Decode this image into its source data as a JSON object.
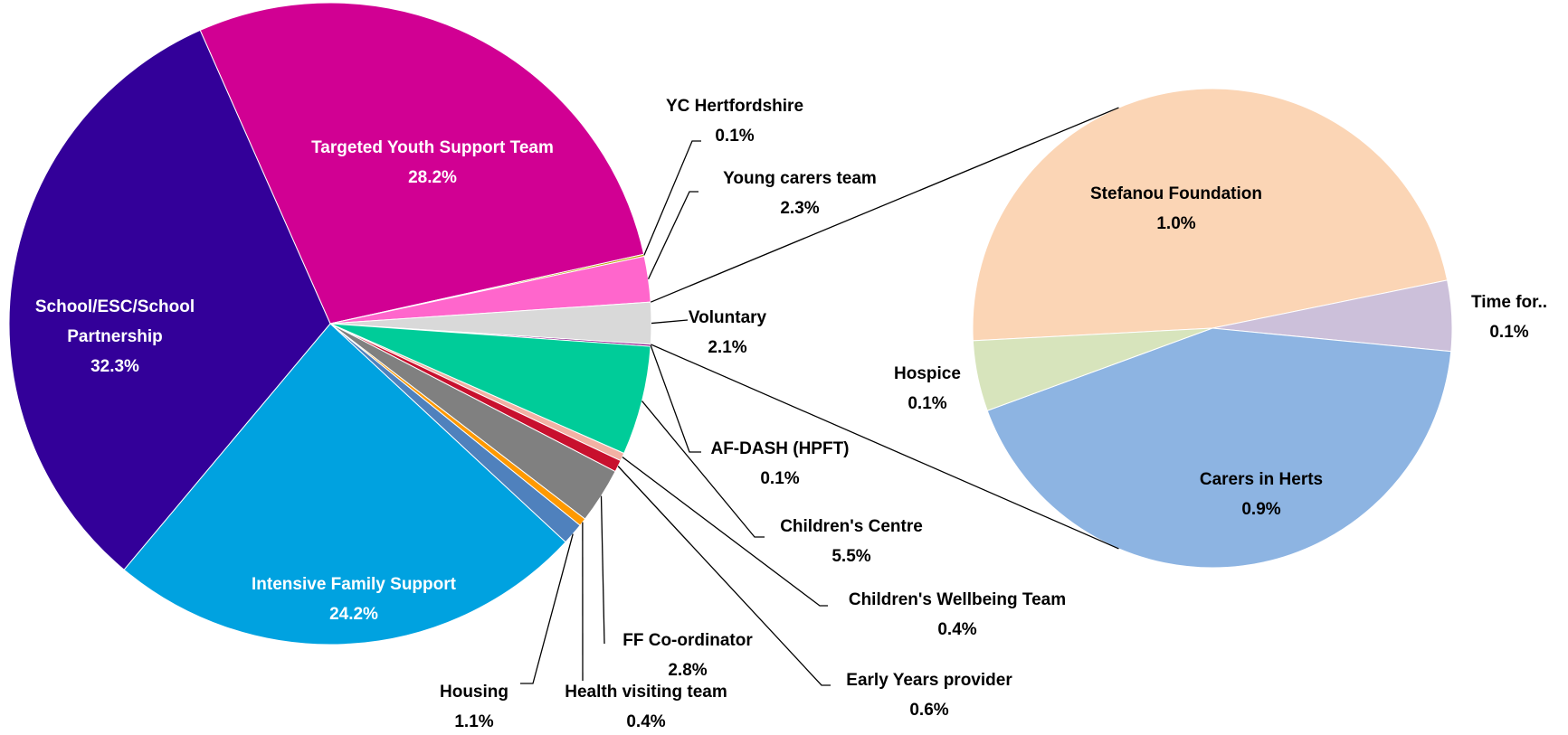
{
  "chart_data": [
    {
      "type": "pie",
      "categories": [
        "Targeted Youth Support Team",
        "YC Hertfordshire",
        "Young carers team",
        "Voluntary",
        "AF-DASH (HPFT)",
        "Children's Centre",
        "Children's Wellbeing Team",
        "Early Years provider",
        "FF Co-ordinator",
        "Health visiting team",
        "Housing",
        "Intensive Family Support",
        "School/ESC/School Partnership"
      ],
      "values": [
        28.2,
        0.1,
        2.3,
        2.1,
        0.1,
        5.5,
        0.4,
        0.6,
        2.8,
        0.4,
        1.1,
        24.2,
        32.3
      ],
      "value_labels": [
        "28.2%",
        "0.1%",
        "2.3%",
        "2.1%",
        "0.1%",
        "5.5%",
        "0.4%",
        "0.6%",
        "2.8%",
        "0.4%",
        "1.1%",
        "24.2%",
        "32.3%"
      ],
      "colors": [
        "#d10093",
        "#b8a000",
        "#ff66cc",
        "#d9d9d9",
        "#7f007f",
        "#00cc99",
        "#f2b1a4",
        "#c8102e",
        "#808080",
        "#ff9900",
        "#4f81bd",
        "#00a2e0",
        "#330099"
      ]
    },
    {
      "type": "pie",
      "categories": [
        "Stefanou Foundation",
        "Time for..",
        "Carers in Herts",
        "Hospice"
      ],
      "values": [
        1.0,
        0.1,
        0.9,
        0.1
      ],
      "value_labels": [
        "1.0%",
        "0.1%",
        "0.9%",
        "0.1%"
      ],
      "colors": [
        "#fbd5b5",
        "#ccc0da",
        "#8db4e2",
        "#d7e4bc"
      ]
    }
  ]
}
